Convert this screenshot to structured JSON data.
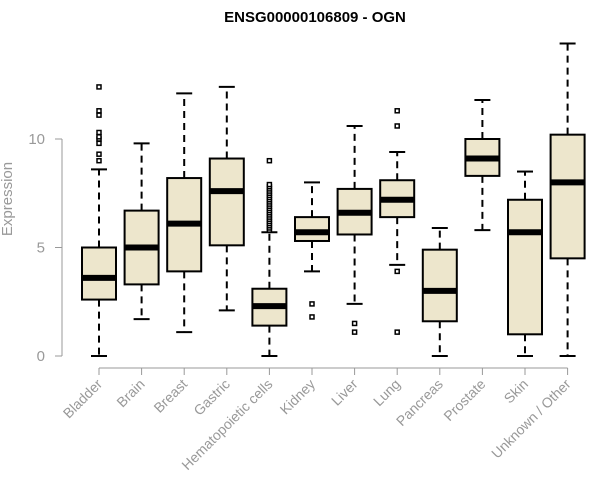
{
  "chart_data": {
    "type": "boxplot",
    "title": "ENSG00000106809 - OGN",
    "xlabel": "",
    "ylabel": "Expression",
    "ylim": [
      0,
      14.6
    ],
    "yticks": [
      0,
      5,
      10
    ],
    "ytick_labels": [
      "0",
      "5",
      "10"
    ],
    "box_color": "#EDE6CC",
    "stroke_color": "#000000",
    "axis_color": "#999999",
    "categories": [
      "Bladder",
      "Brain",
      "Breast",
      "Gastric",
      "Hematopoietic cells",
      "Kidney",
      "Liver",
      "Lung",
      "Pancreas",
      "Prostate",
      "Skin",
      "Unknown / Other"
    ],
    "boxes": [
      {
        "category": "Bladder",
        "whisker_low": 0,
        "q1": 2.6,
        "median": 3.6,
        "q3": 5.0,
        "whisker_high": 8.6,
        "outliers": [
          9.0,
          9.3,
          9.8,
          10.0,
          10.1,
          10.3,
          11.1,
          11.3,
          12.4
        ]
      },
      {
        "category": "Brain",
        "whisker_low": 1.7,
        "q1": 3.3,
        "median": 5.0,
        "q3": 6.7,
        "whisker_high": 9.8,
        "outliers": []
      },
      {
        "category": "Breast",
        "whisker_low": 1.1,
        "q1": 3.9,
        "median": 6.1,
        "q3": 8.2,
        "whisker_high": 12.1,
        "outliers": []
      },
      {
        "category": "Gastric",
        "whisker_low": 2.1,
        "q1": 5.1,
        "median": 7.6,
        "q3": 9.1,
        "whisker_high": 12.4,
        "outliers": []
      },
      {
        "category": "Hematopoietic cells",
        "whisker_low": 0,
        "q1": 1.4,
        "median": 2.3,
        "q3": 3.1,
        "whisker_high": 5.7,
        "outliers": [
          5.8,
          5.9,
          6.0,
          6.1,
          6.2,
          6.3,
          6.4,
          6.5,
          6.6,
          6.7,
          6.8,
          6.9,
          7.0,
          7.1,
          7.2,
          7.3,
          7.4,
          7.5,
          7.6,
          7.7,
          7.8,
          7.9,
          9.0
        ]
      },
      {
        "category": "Kidney",
        "whisker_low": 3.9,
        "q1": 5.3,
        "median": 5.7,
        "q3": 6.4,
        "whisker_high": 8.0,
        "outliers": [
          1.8,
          2.4
        ]
      },
      {
        "category": "Liver",
        "whisker_low": 2.4,
        "q1": 5.6,
        "median": 6.6,
        "q3": 7.7,
        "whisker_high": 10.6,
        "outliers": [
          1.1,
          1.5
        ]
      },
      {
        "category": "Lung",
        "whisker_low": 4.2,
        "q1": 6.4,
        "median": 7.2,
        "q3": 8.1,
        "whisker_high": 9.4,
        "outliers": [
          1.1,
          3.9,
          10.6,
          11.3
        ]
      },
      {
        "category": "Pancreas",
        "whisker_low": 0,
        "q1": 1.6,
        "median": 3.0,
        "q3": 4.9,
        "whisker_high": 5.9,
        "outliers": []
      },
      {
        "category": "Prostate",
        "whisker_low": 5.8,
        "q1": 8.3,
        "median": 9.1,
        "q3": 10.0,
        "whisker_high": 11.8,
        "outliers": []
      },
      {
        "category": "Skin",
        "whisker_low": 0,
        "q1": 1.0,
        "median": 5.7,
        "q3": 7.2,
        "whisker_high": 8.5,
        "outliers": []
      },
      {
        "category": "Unknown / Other",
        "whisker_low": 0,
        "q1": 4.5,
        "median": 8.0,
        "q3": 10.2,
        "whisker_high": 14.4,
        "outliers": []
      }
    ]
  }
}
